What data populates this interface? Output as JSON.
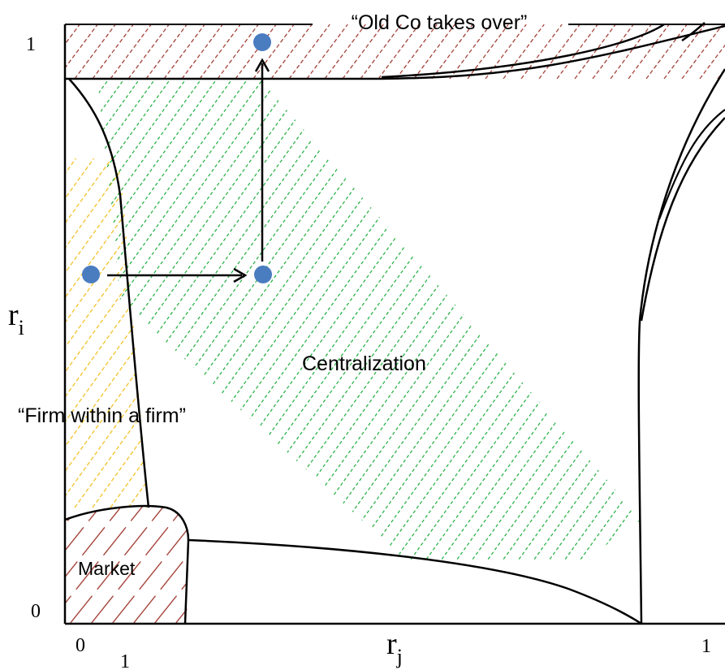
{
  "labels": {
    "old_co": "“Old Co takes over”",
    "centralization": "Centralization",
    "firm_within": "“Firm within a firm”",
    "market": "Market"
  },
  "axes": {
    "y_axis_letter": "r",
    "y_axis_sub": "i",
    "x_axis_letter": "r",
    "x_axis_sub": "j",
    "y_tick_top": "1",
    "y_tick_bottom": "0",
    "x_tick_origin": "0",
    "x_tick_extra": "1",
    "x_tick_right": "1"
  },
  "colors": {
    "line": "#000000",
    "hatch_red": "#a5453c",
    "hatch_green": "#2db34a",
    "hatch_yellow": "#f2c22a",
    "dot": "#4a7cc0"
  }
}
